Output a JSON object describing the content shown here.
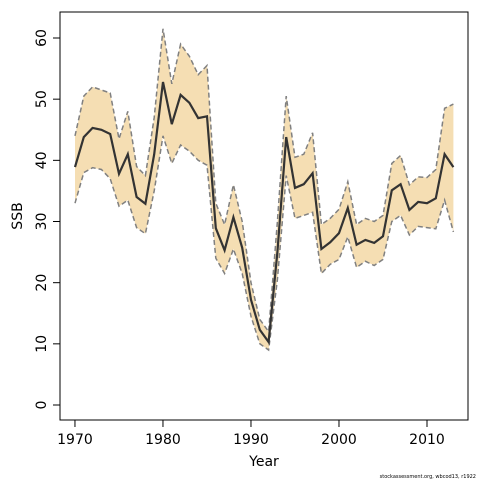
{
  "chart_data": {
    "type": "line",
    "xlabel": "Year",
    "ylabel": "SSB",
    "note": "stockassessment.org, wbcod13, r1922",
    "x": [
      1970,
      1971,
      1972,
      1973,
      1974,
      1975,
      1976,
      1977,
      1978,
      1979,
      1980,
      1981,
      1982,
      1983,
      1984,
      1985,
      1986,
      1987,
      1988,
      1989,
      1990,
      1991,
      1992,
      1993,
      1994,
      1995,
      1996,
      1997,
      1998,
      1999,
      2000,
      2001,
      2002,
      2003,
      2004,
      2005,
      2006,
      2007,
      2008,
      2009,
      2010,
      2011,
      2012,
      2013
    ],
    "values": [
      38.9,
      43.8,
      45.3,
      45.0,
      44.3,
      37.8,
      41.0,
      34.0,
      32.9,
      41.0,
      52.8,
      45.9,
      50.7,
      49.4,
      46.9,
      47.2,
      28.9,
      25.3,
      30.7,
      25.7,
      17.2,
      12.3,
      10.3,
      25.0,
      43.8,
      35.5,
      36.1,
      37.9,
      25.5,
      26.6,
      28.1,
      32.2,
      26.2,
      27.0,
      26.5,
      27.6,
      35.1,
      36.1,
      31.9,
      33.2,
      33.0,
      33.8,
      41.0,
      38.9
    ],
    "upper": [
      44,
      50.5,
      52,
      51.5,
      51,
      43.5,
      48,
      39,
      37.5,
      47,
      61.5,
      52.5,
      59,
      57,
      54,
      55.5,
      33,
      29.5,
      36,
      30,
      20,
      14,
      12,
      30,
      50.5,
      40.5,
      41,
      44.5,
      29.5,
      30.5,
      32,
      36.5,
      29.5,
      30.5,
      30,
      31,
      39.5,
      40.8,
      36,
      37.3,
      37.2,
      38.5,
      48.5,
      49.2
    ],
    "lower": [
      33,
      38,
      38.8,
      38.5,
      37,
      32.5,
      33.5,
      29,
      28,
      35,
      44,
      39.5,
      42.5,
      41.5,
      40,
      39.2,
      24,
      21.5,
      25.5,
      21.5,
      14.5,
      10,
      9,
      20.5,
      37.5,
      30.5,
      31,
      31.5,
      21.5,
      23,
      23.8,
      27.5,
      22.5,
      23.5,
      22.8,
      23.8,
      30,
      31,
      27.8,
      29.2,
      29,
      28.8,
      33.5,
      28.3
    ],
    "color": "#333333",
    "band_color": "#f5deb3",
    "bound_color": "#808080",
    "xlim": [
      1968.3,
      2014.66
    ],
    "ylim": [
      -2.45,
      64.25
    ],
    "xticks": [
      1970,
      1980,
      1990,
      2000,
      2010
    ],
    "yticks": [
      0,
      10,
      20,
      30,
      40,
      50,
      60
    ]
  }
}
